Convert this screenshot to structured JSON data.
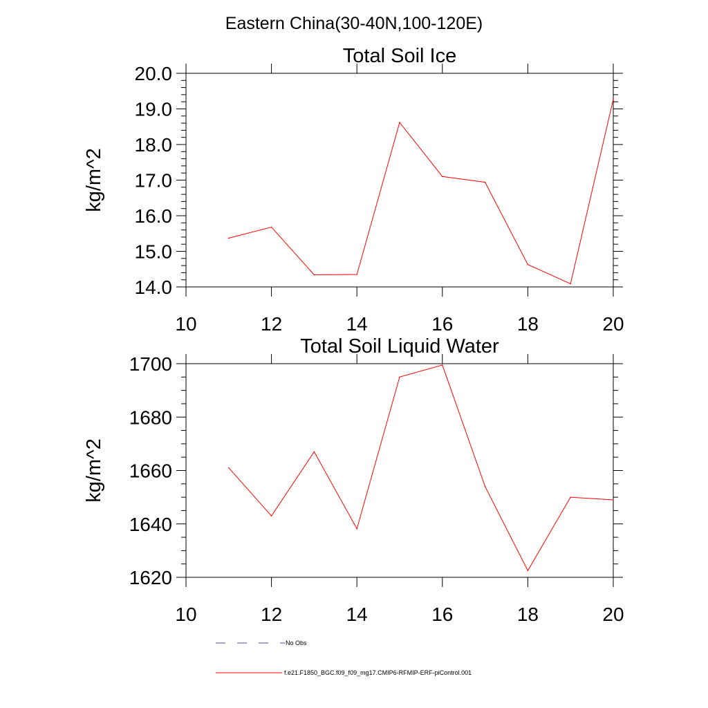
{
  "figure": {
    "suptitle": "Eastern China(30-40N,100-120E)"
  },
  "chart_data": [
    {
      "type": "line",
      "title": "Total Soil Ice",
      "xlabel": "",
      "ylabel": "kg/m^2",
      "xlim": [
        10,
        20
      ],
      "ylim": [
        14.0,
        20.0
      ],
      "x_ticks": [
        10,
        12,
        14,
        16,
        18,
        20
      ],
      "x_tick_labels": [
        "10",
        "12",
        "14",
        "16",
        "18",
        "20"
      ],
      "y_ticks": [
        14.0,
        15.0,
        16.0,
        17.0,
        18.0,
        19.0,
        20.0
      ],
      "y_tick_labels": [
        "14.0",
        "15.0",
        "16.0",
        "17.0",
        "18.0",
        "19.0",
        "20.0"
      ],
      "grid": false,
      "series": [
        {
          "name": "f.e21.F1850_BGC.f09_f09_mg17.CMIP6-RFMIP-ERF-piControl.001",
          "color": "#ff0000",
          "x": [
            11,
            12,
            13,
            14,
            15,
            16,
            17,
            18,
            19,
            20
          ],
          "values": [
            15.37,
            15.68,
            14.34,
            14.35,
            18.62,
            17.1,
            16.94,
            14.63,
            14.09,
            19.27
          ]
        }
      ]
    },
    {
      "type": "line",
      "title": "Total Soil Liquid Water",
      "xlabel": "",
      "ylabel": "kg/m^2",
      "xlim": [
        10,
        20
      ],
      "ylim": [
        1620,
        1700
      ],
      "x_ticks": [
        10,
        12,
        14,
        16,
        18,
        20
      ],
      "x_tick_labels": [
        "10",
        "12",
        "14",
        "16",
        "18",
        "20"
      ],
      "y_ticks": [
        1620,
        1640,
        1660,
        1680,
        1700
      ],
      "y_tick_labels": [
        "1620",
        "1640",
        "1660",
        "1680",
        "1700"
      ],
      "grid": false,
      "series": [
        {
          "name": "f.e21.F1850_BGC.f09_f09_mg17.CMIP6-RFMIP-ERF-piControl.001",
          "color": "#ff0000",
          "x": [
            11,
            12,
            13,
            14,
            15,
            16,
            17,
            18,
            19,
            20
          ],
          "values": [
            1661,
            1643,
            1667,
            1638.2,
            1695,
            1699.5,
            1654,
            1622.5,
            1650,
            1649
          ]
        }
      ]
    }
  ],
  "legend": {
    "placement": "bottom",
    "items": [
      {
        "label": "No Obs",
        "color": "#4a4a9a",
        "style": "dashed"
      },
      {
        "label": "f.e21.F1850_BGC.f09_f09_mg17.CMIP6-RFMIP-ERF-piControl.001",
        "color": "#ff0000",
        "style": "solid"
      }
    ]
  }
}
